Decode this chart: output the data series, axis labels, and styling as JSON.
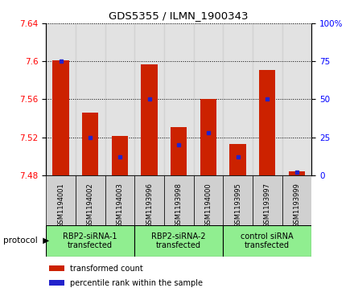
{
  "title": "GDS5355 / ILMN_1900343",
  "samples": [
    "GSM1194001",
    "GSM1194002",
    "GSM1194003",
    "GSM1193996",
    "GSM1193998",
    "GSM1194000",
    "GSM1193995",
    "GSM1193997",
    "GSM1193999"
  ],
  "bar_tops": [
    7.601,
    7.546,
    7.521,
    7.597,
    7.531,
    7.56,
    7.513,
    7.591,
    7.484
  ],
  "bar_base": 7.48,
  "percentile_values": [
    75,
    25,
    12,
    50,
    20,
    28,
    12,
    50,
    2
  ],
  "groups": [
    {
      "label": "RBP2-siRNA-1\ntransfected",
      "start": 0,
      "end": 2
    },
    {
      "label": "RBP2-siRNA-2\ntransfected",
      "start": 3,
      "end": 5
    },
    {
      "label": "control siRNA\ntransfected",
      "start": 6,
      "end": 8
    }
  ],
  "ylim_left": [
    7.48,
    7.64
  ],
  "ylim_right": [
    0,
    100
  ],
  "yticks_left": [
    7.48,
    7.52,
    7.56,
    7.6,
    7.64
  ],
  "yticks_right": [
    0,
    25,
    50,
    75,
    100
  ],
  "bar_color": "#cc2200",
  "percentile_color": "#2222cc",
  "group_color": "#90ee90",
  "sample_bg_color": "#d0d0d0",
  "plot_bg_color": "#ffffff",
  "legend_bar_label": "transformed count",
  "legend_pct_label": "percentile rank within the sample"
}
